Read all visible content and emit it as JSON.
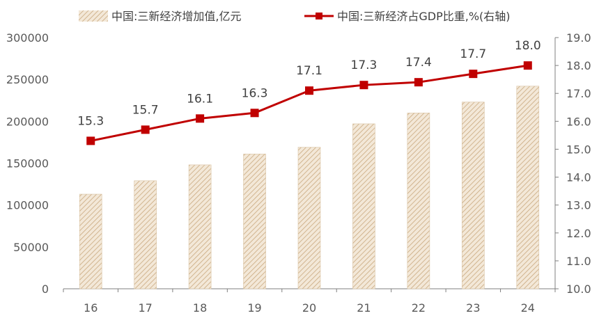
{
  "chart_data": {
    "type": "bar+line",
    "categories": [
      "16",
      "17",
      "18",
      "19",
      "20",
      "21",
      "22",
      "23",
      "24"
    ],
    "series": [
      {
        "name": "中国:三新经济增加值,亿元",
        "type": "bar",
        "axis": "left",
        "values": [
          113000,
          129000,
          148000,
          161000,
          169000,
          197000,
          210000,
          223000,
          242000
        ],
        "color": "#D9C3A3"
      },
      {
        "name": "中国:三新经济占GDP比重,%(右轴)",
        "type": "line",
        "axis": "right",
        "values": [
          15.3,
          15.7,
          16.1,
          16.3,
          17.1,
          17.3,
          17.4,
          17.7,
          18.0
        ],
        "labels": [
          "15.3",
          "15.7",
          "16.1",
          "16.3",
          "17.1",
          "17.3",
          "17.4",
          "17.7",
          "18.0"
        ],
        "color": "#C00000"
      }
    ],
    "y_left": {
      "min": 0,
      "max": 300000,
      "ticks": [
        "0",
        "50000",
        "100000",
        "150000",
        "200000",
        "250000",
        "300000"
      ]
    },
    "y_right": {
      "min": 10.0,
      "max": 19.0,
      "ticks": [
        "10.0",
        "11.0",
        "12.0",
        "13.0",
        "14.0",
        "15.0",
        "16.0",
        "17.0",
        "18.0",
        "19.0"
      ]
    },
    "legend_position": "top",
    "grid": false
  }
}
